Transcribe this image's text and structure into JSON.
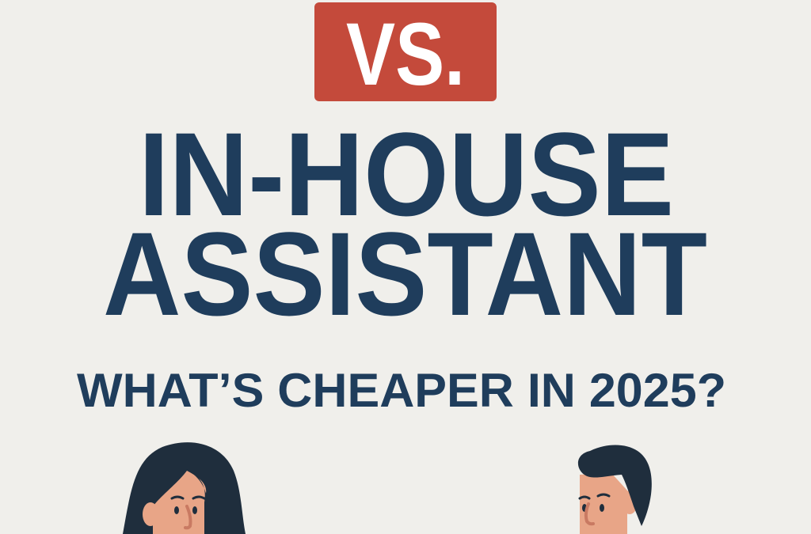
{
  "badge": {
    "label": "VS."
  },
  "headline": {
    "line1": "IN-HOUSE",
    "line2": "ASSISTANT"
  },
  "subtitle": "WHAT’S CHEAPER IN 2025?",
  "colors": {
    "background": "#f0efeb",
    "navy": "#1f3d5c",
    "badge_red": "#c44a3b",
    "hair": "#1f2e3d",
    "skin": "#e8a587"
  },
  "illustrations": [
    "woman-face",
    "man-face"
  ]
}
